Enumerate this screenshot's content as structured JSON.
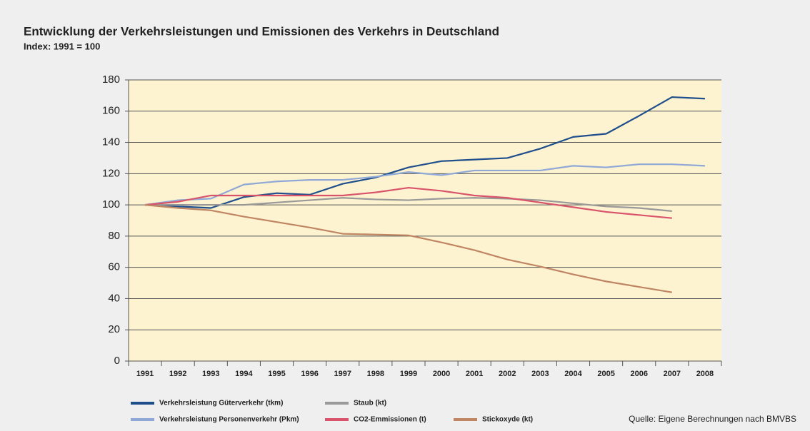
{
  "chart_data": {
    "type": "line",
    "title": "Entwicklung der Verkehrsleistungen und Emissionen des Verkehrs in Deutschland",
    "subtitle": "Index: 1991 = 100",
    "source": "Quelle: Eigene Berechnungen nach BMVBS",
    "categories": [
      "1991",
      "1992",
      "1993",
      "1994",
      "1995",
      "1996",
      "1997",
      "1998",
      "1999",
      "2000",
      "2001",
      "2002",
      "2003",
      "2004",
      "2005",
      "2006",
      "2007",
      "2008"
    ],
    "series": [
      {
        "name": "Verkehrsleistung Güterverkehr (tkm)",
        "color": "#1f4e8c",
        "values": [
          100,
          99,
          98,
          105,
          107.5,
          106.5,
          113.5,
          117.5,
          124,
          128,
          129,
          130,
          136,
          143.5,
          145.5,
          157,
          169,
          168
        ]
      },
      {
        "name": "Verkehrsleistung Personenverkehr (Pkm)",
        "color": "#8fa8d6",
        "values": [
          100,
          103,
          104,
          113,
          115,
          116,
          116,
          118,
          121,
          119,
          122,
          122,
          122,
          125,
          124,
          126,
          126,
          125
        ]
      },
      {
        "name": "Staub (kt)",
        "color": "#999999",
        "values": [
          100,
          100,
          100,
          100,
          101.5,
          103,
          104.5,
          103.5,
          103,
          104,
          104.5,
          104,
          103,
          101,
          99,
          98,
          96,
          null
        ]
      },
      {
        "name": "CO2-Emmissionen (t)",
        "color": "#d9546b",
        "values": [
          100,
          102,
          106,
          106,
          106,
          106,
          106,
          108,
          111,
          109,
          106,
          104.5,
          101.5,
          98.5,
          95.5,
          93.5,
          91.5,
          null
        ]
      },
      {
        "name": "Stickoxyde (kt)",
        "color": "#c08563",
        "values": [
          100,
          98,
          96.5,
          92.5,
          89,
          85.5,
          81.5,
          81,
          80.5,
          76,
          71,
          65,
          60.5,
          55.5,
          51,
          47.5,
          44,
          null
        ]
      }
    ],
    "ylim": [
      0,
      180
    ],
    "yticks": [
      0,
      20,
      40,
      60,
      80,
      100,
      120,
      140,
      160,
      180
    ],
    "grid": true
  }
}
